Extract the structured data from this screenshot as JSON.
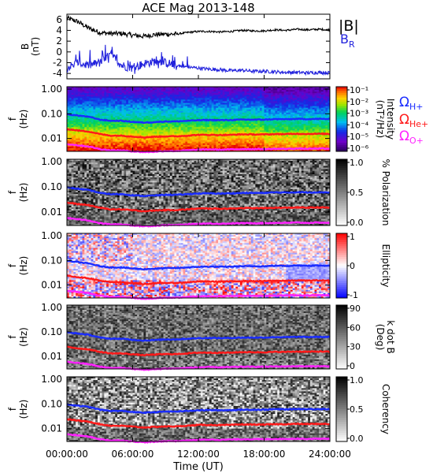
{
  "figure": {
    "title": "ACE Mag 2013-148",
    "xlabel": "Time (UT)",
    "xticks": [
      "00:00:00",
      "06:00:00",
      "12:00:00",
      "18:00:00",
      "24:00:00"
    ],
    "colors": {
      "total_field": "#000000",
      "radial_field": "#2222dd",
      "gyro_h": "#1a2cff",
      "gyro_he": "#ff1a1a",
      "gyro_o": "#ff22ff"
    }
  },
  "chart_data": [
    {
      "type": "line",
      "ylabel": "B\n(nT)",
      "ylim": [
        -5,
        7
      ],
      "yticks": [
        "6",
        "4",
        "2",
        "0",
        "-2",
        "-4"
      ],
      "x_unit": "hours UT",
      "xlim": [
        0,
        24
      ],
      "series": [
        {
          "name": "|B|",
          "x": [
            0,
            1,
            2,
            3,
            4,
            5,
            6,
            7,
            8,
            9,
            10,
            11,
            12,
            13,
            14,
            15,
            16,
            17,
            18,
            19,
            20,
            21,
            22,
            23,
            24
          ],
          "values": [
            6.3,
            5.6,
            4.4,
            3.6,
            3.4,
            3.4,
            3.1,
            2.9,
            3.2,
            3.3,
            3.3,
            3.6,
            3.8,
            3.8,
            3.7,
            3.8,
            4.0,
            3.9,
            3.9,
            4.1,
            4.0,
            4.2,
            4.1,
            4.2,
            4.1
          ]
        },
        {
          "name": "B_R",
          "x": [
            0,
            1,
            2,
            3,
            4,
            5,
            6,
            7,
            8,
            9,
            10,
            11,
            12,
            13,
            14,
            15,
            16,
            17,
            18,
            19,
            20,
            21,
            22,
            23,
            24
          ],
          "values": [
            -3.0,
            -2.0,
            -2.5,
            -2.0,
            -0.5,
            -2.5,
            -3.0,
            -2.2,
            -1.8,
            -2.0,
            -2.5,
            -2.8,
            -3.0,
            -3.2,
            -3.3,
            -3.5,
            -3.4,
            -3.6,
            -3.6,
            -3.7,
            -3.8,
            -3.8,
            -3.9,
            -3.8,
            -3.9
          ]
        }
      ]
    },
    {
      "type": "heatmap",
      "ylabel": "f\n(Hz)",
      "colorbar_label": "Intensity\n(nT²/Hz)",
      "colorbar_ticks": [
        "10⁻¹",
        "10⁻²",
        "10⁻³",
        "10⁻⁴",
        "10⁻⁵",
        "10⁻⁶"
      ],
      "colormap": "rainbow"
    },
    {
      "type": "heatmap",
      "ylabel": "f\n(Hz)",
      "colorbar_label": "% Polarization",
      "colorbar_ticks": [
        "1.0",
        "0.5",
        "0.0"
      ],
      "colormap": "gray"
    },
    {
      "type": "heatmap",
      "ylabel": "f\n(Hz)",
      "colorbar_label": "Ellipticity",
      "colorbar_ticks": [
        "1",
        "0",
        "-1"
      ],
      "colormap": "blue-white-red"
    },
    {
      "type": "heatmap",
      "ylabel": "f\n(Hz)",
      "colorbar_label": "k dot B\n(Deg)",
      "colorbar_ticks": [
        "90",
        "60",
        "30",
        "0"
      ],
      "colormap": "gray"
    },
    {
      "type": "heatmap",
      "ylabel": "f\n(Hz)",
      "colorbar_label": "Coherency",
      "colorbar_ticks": [
        "1.0",
        "0.5",
        "0.0"
      ],
      "colormap": "gray"
    }
  ],
  "spectrogram": {
    "y_scale": "log",
    "ylim_hz": [
      0.003,
      1.25
    ],
    "yticks": [
      "1.00",
      "0.10",
      "0.01"
    ],
    "ytick_values": [
      1.0,
      0.1,
      0.01
    ]
  },
  "gyrofrequency_lines": {
    "x": [
      0,
      1,
      2,
      3,
      4,
      5,
      6,
      7,
      8,
      9,
      10,
      11,
      12,
      13,
      14,
      15,
      16,
      17,
      18,
      19,
      20,
      21,
      22,
      23,
      24
    ],
    "H+": [
      0.095,
      0.085,
      0.075,
      0.058,
      0.052,
      0.052,
      0.047,
      0.044,
      0.046,
      0.049,
      0.049,
      0.052,
      0.055,
      0.056,
      0.055,
      0.056,
      0.058,
      0.058,
      0.058,
      0.061,
      0.06,
      0.062,
      0.061,
      0.062,
      0.061
    ],
    "He+": [
      0.024,
      0.021,
      0.019,
      0.015,
      0.013,
      0.013,
      0.012,
      0.011,
      0.0117,
      0.0122,
      0.0122,
      0.013,
      0.014,
      0.014,
      0.0138,
      0.014,
      0.0147,
      0.0145,
      0.0145,
      0.015,
      0.015,
      0.0155,
      0.0152,
      0.0155,
      0.0152
    ],
    "O+": [
      0.0059,
      0.0053,
      0.0047,
      0.0037,
      0.0033,
      0.0033,
      0.003,
      0.0028,
      0.0029,
      0.0031,
      0.0031,
      0.0033,
      0.0035,
      0.0036,
      0.0035,
      0.0036,
      0.0037,
      0.0037,
      0.0037,
      0.0038,
      0.0038,
      0.0039,
      0.0038,
      0.0039,
      0.0038
    ]
  },
  "legend_top": {
    "total": "|B|",
    "radial": "B",
    "radial_sub": "R"
  },
  "legend_gyro": [
    {
      "symbol": "Ω",
      "sub": "H+"
    },
    {
      "symbol": "Ω",
      "sub": "He+"
    },
    {
      "symbol": "Ω",
      "sub": "O+"
    }
  ]
}
